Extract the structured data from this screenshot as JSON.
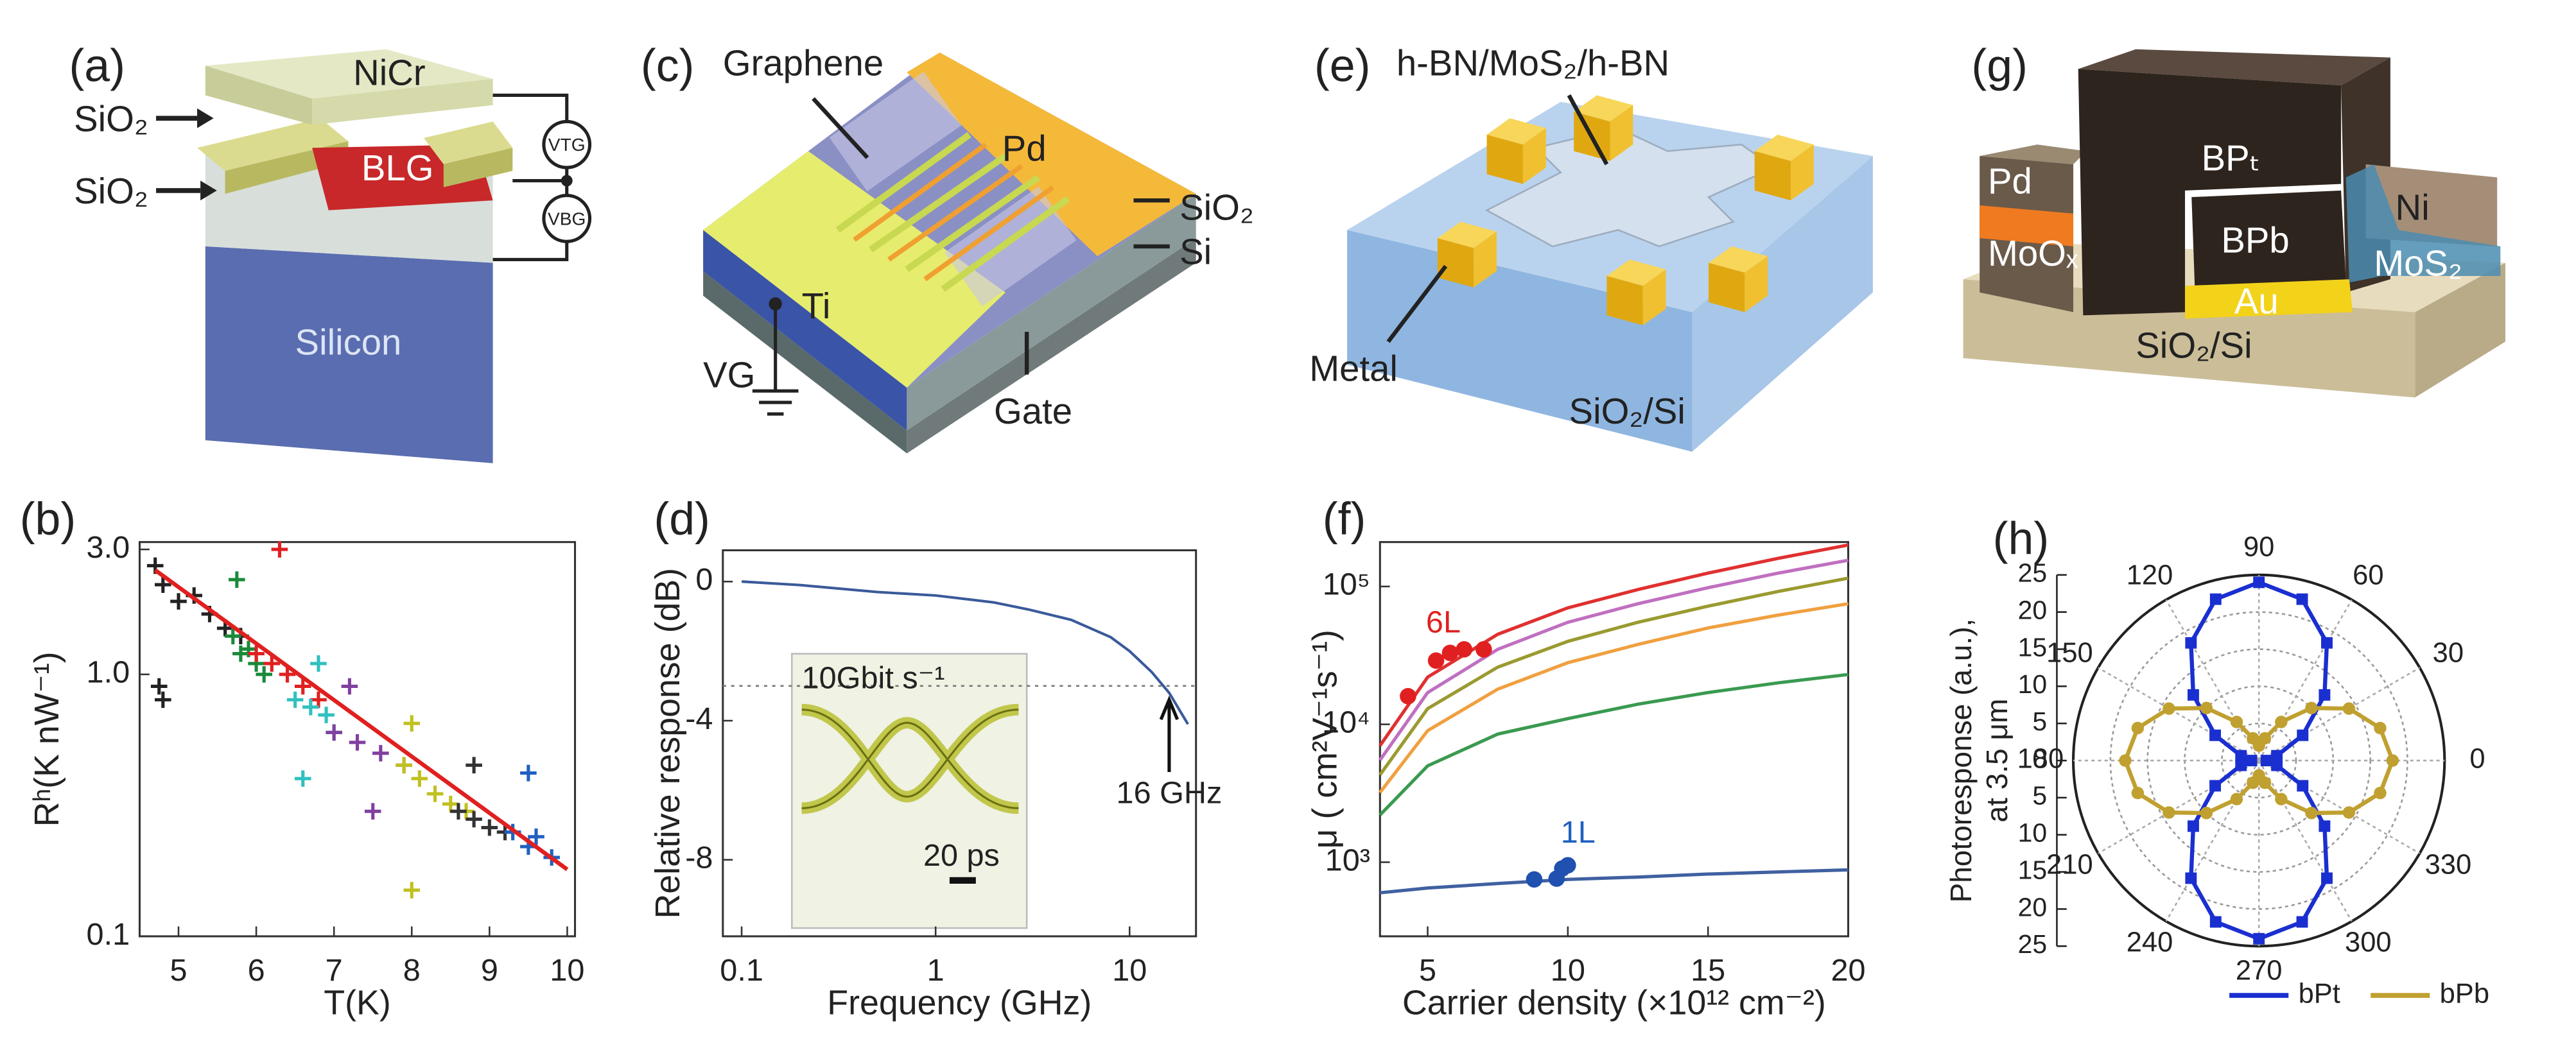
{
  "diagrams": {
    "a": {
      "panel_label": "(a)",
      "labels": [
        "NiCr",
        "SiO₂",
        "SiO₂",
        "BLG",
        "VTG",
        "VBG",
        "Silicon"
      ]
    },
    "c": {
      "panel_label": "(c)",
      "labels": [
        "Graphene",
        "Pd",
        "SiO₂",
        "Si",
        "Ti",
        "VG",
        "Gate"
      ]
    },
    "e": {
      "panel_label": "(e)",
      "labels": [
        "h-BN/MoS₂/h-BN",
        "Metal",
        "SiO₂/Si"
      ]
    },
    "g": {
      "panel_label": "(g)",
      "labels": [
        "Pd",
        "BPₜ",
        "Ni",
        "MoOₓ",
        "BPb",
        "MoS₂",
        "Au",
        "SiO₂/Si"
      ]
    }
  },
  "chart_data": [
    {
      "type": "scatter",
      "title": "(b)",
      "x_label": "T(K)",
      "y_label": "Rʰ(K nW⁻¹)",
      "xlim": [
        4.5,
        10.1
      ],
      "ylim": [
        0.1,
        3.2
      ],
      "log_y": true,
      "xticks": [
        5,
        6,
        7,
        8,
        9,
        10
      ],
      "yticks": [
        0.1,
        {
          "value": 1,
          "label": "1.0"
        },
        {
          "value": 3,
          "label": "3.0"
        }
      ],
      "series": [
        {
          "color": "#222222",
          "x": [
            4.7,
            4.8,
            5.0,
            5.2,
            5.4,
            5.6,
            5.8,
            4.75,
            4.8
          ],
          "y": [
            2.6,
            2.2,
            1.9,
            2.0,
            1.7,
            1.5,
            1.4,
            0.9,
            0.8
          ]
        },
        {
          "color": "#1a8a3a",
          "x": [
            5.7,
            5.8,
            5.9,
            6.0,
            6.1,
            5.75
          ],
          "y": [
            1.4,
            1.2,
            1.25,
            1.1,
            1.0,
            2.3
          ]
        },
        {
          "color": "#e02020",
          "x": [
            6.0,
            6.2,
            6.4,
            6.6,
            6.8,
            6.3
          ],
          "y": [
            1.2,
            1.1,
            1.0,
            0.9,
            0.8,
            3.0
          ]
        },
        {
          "color": "#30c0c0",
          "x": [
            6.5,
            6.7,
            6.9,
            7.0,
            6.6,
            6.8
          ],
          "y": [
            0.8,
            0.75,
            0.7,
            0.6,
            0.4,
            1.1
          ]
        },
        {
          "color": "#8040a0",
          "x": [
            7.0,
            7.3,
            7.6,
            7.9,
            7.2,
            7.5
          ],
          "y": [
            0.6,
            0.55,
            0.5,
            0.45,
            0.9,
            0.3
          ]
        },
        {
          "color": "#c0c020",
          "x": [
            7.9,
            8.1,
            8.3,
            8.5,
            8.7,
            8.0,
            8.0
          ],
          "y": [
            0.45,
            0.4,
            0.35,
            0.32,
            0.3,
            0.15,
            0.65
          ]
        },
        {
          "color": "#333333",
          "x": [
            8.6,
            8.8,
            9.0,
            9.2,
            8.8
          ],
          "y": [
            0.3,
            0.28,
            0.26,
            0.25,
            0.45
          ]
        },
        {
          "color": "#2060c0",
          "x": [
            9.3,
            9.5,
            9.6,
            9.8,
            9.5
          ],
          "y": [
            0.25,
            0.22,
            0.24,
            0.2,
            0.42
          ]
        }
      ],
      "lines": [
        {
          "color": "#e02020",
          "x": [
            4.7,
            10
          ],
          "y": [
            2.5,
            0.18
          ]
        }
      ]
    },
    {
      "type": "line",
      "title": "(d)",
      "x_label": "Frequency (GHz)",
      "y_label": "Relative response (dB)",
      "xlim": [
        0.08,
        22
      ],
      "ylim": [
        -10.2,
        0.9
      ],
      "log_x": true,
      "xticks": [
        0.1,
        1,
        10
      ],
      "yticks": [
        0,
        -4,
        -8
      ],
      "x": [
        0.1,
        0.2,
        0.5,
        1,
        2,
        3,
        5,
        8,
        10,
        13,
        16,
        20
      ],
      "series": [
        {
          "color": "#3a5a9a",
          "values": [
            0,
            -0.1,
            -0.3,
            -0.4,
            -0.6,
            -0.8,
            -1.1,
            -1.6,
            -2,
            -2.6,
            -3.2,
            -4.1
          ]
        }
      ],
      "reference_y": -3,
      "annotations": [
        {
          "text": "16 GHz",
          "x": 16
        }
      ],
      "inset_labels": [
        "10Gbit s⁻¹",
        "20 ps"
      ]
    },
    {
      "type": "line",
      "title": "(f)",
      "x_label": "Carrier density (×10¹² cm⁻²)",
      "y_label": "μ ( cm²V⁻¹s⁻¹)",
      "xlim": [
        3.3,
        20
      ],
      "ylim": [
        290,
        210000
      ],
      "log_y": true,
      "xticks": [
        5,
        10,
        15,
        20
      ],
      "yticks": [
        {
          "value": 1000,
          "label": "10³"
        },
        {
          "value": 10000,
          "label": "10⁴"
        },
        {
          "value": 100000,
          "label": "10⁵"
        }
      ],
      "x": [
        3.3,
        5,
        7.5,
        10,
        12.5,
        15,
        17.5,
        20
      ],
      "series": [
        {
          "color": "#e03030",
          "values": [
            7000,
            22000,
            45000,
            70000,
            95000,
            125000,
            160000,
            200000
          ]
        },
        {
          "color": "#c070c0",
          "values": [
            5500,
            17000,
            35000,
            55000,
            75000,
            98000,
            125000,
            155000
          ]
        },
        {
          "color": "#9a9a30",
          "values": [
            4300,
            13000,
            26000,
            40000,
            55000,
            72000,
            92000,
            115000
          ]
        },
        {
          "color": "#f0a040",
          "values": [
            3200,
            9000,
            18000,
            28000,
            38000,
            50000,
            62000,
            75000
          ]
        },
        {
          "color": "#3a9a50",
          "values": [
            2200,
            5000,
            8500,
            11000,
            14000,
            17000,
            20000,
            23000
          ]
        },
        {
          "color": "#4060a0",
          "values": [
            600,
            650,
            700,
            750,
            780,
            820,
            850,
            880
          ]
        }
      ],
      "scatter_series": [
        {
          "color": "#e02020",
          "x": [
            4.3,
            5.3,
            5.8,
            6.3,
            7.0
          ],
          "values": [
            16000,
            29000,
            33000,
            35000,
            35000
          ]
        },
        {
          "color": "#2050b0",
          "x": [
            8.8,
            9.6,
            9.8,
            10.0
          ],
          "values": [
            750,
            760,
            900,
            950
          ]
        }
      ],
      "annotations": [
        {
          "text": "6L",
          "color": "#e02020"
        },
        {
          "text": "1L",
          "color": "#2060c0"
        }
      ]
    },
    {
      "type": "polar",
      "title": "(h)",
      "y_label": [
        "Photoresponse (a.u.),",
        "at 3.5 μm"
      ],
      "rlim": [
        0,
        25
      ],
      "rticks": [
        0,
        5,
        10,
        15,
        20,
        25
      ],
      "angle_ticks": [
        0,
        30,
        60,
        90,
        120,
        150,
        180,
        210,
        240,
        270,
        300,
        330
      ],
      "theta": [
        0,
        15,
        30,
        45,
        60,
        75,
        90,
        105,
        120,
        135,
        150,
        165,
        180,
        195,
        210,
        225,
        240,
        255,
        270,
        285,
        300,
        315,
        330,
        345
      ],
      "series": [
        {
          "name": "bPt",
          "color": "#1a2fd0",
          "values": [
            1,
            2.5,
            6.8,
            12.5,
            18.3,
            22.5,
            24,
            22.5,
            18.3,
            12.5,
            6.8,
            2.5,
            1,
            2.5,
            6.8,
            12.5,
            18.3,
            22.5,
            24,
            22.5,
            18.3,
            12.5,
            6.8,
            2.5
          ]
        },
        {
          "name": "bPb",
          "color": "#c0a030",
          "values": [
            18,
            16.9,
            14,
            10,
            6,
            3.1,
            2,
            3.1,
            6,
            10,
            14,
            16.9,
            18,
            16.9,
            14,
            10,
            6,
            3.1,
            2,
            3.1,
            6,
            10,
            14,
            16.9
          ]
        }
      ]
    }
  ]
}
